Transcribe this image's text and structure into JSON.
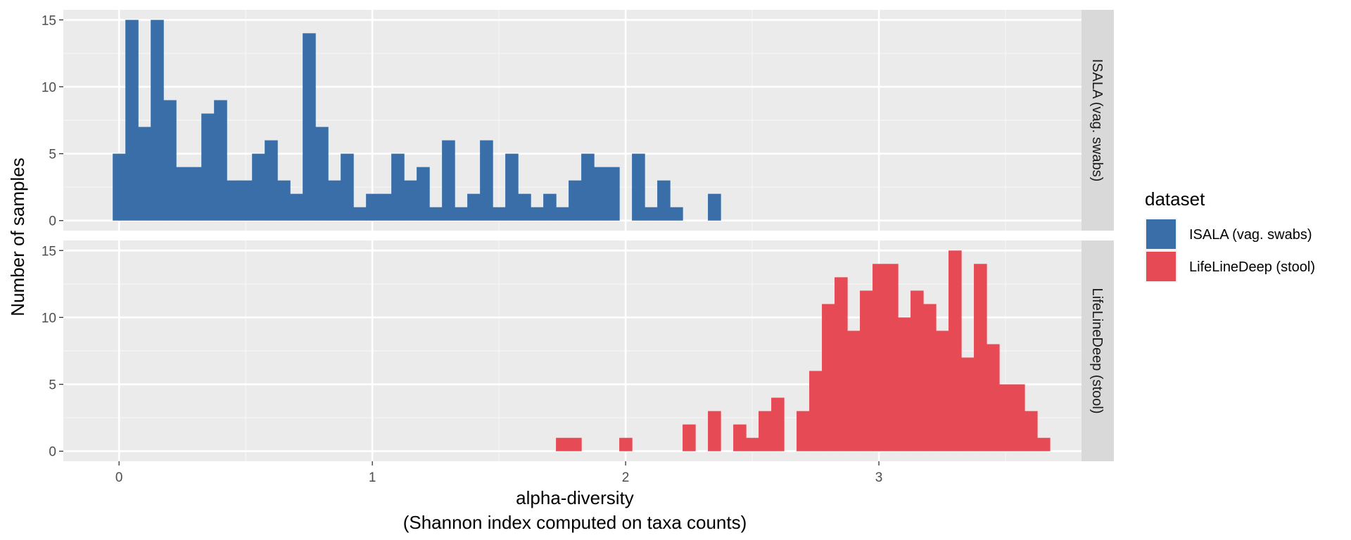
{
  "chart_data": {
    "type": "histogram",
    "xlabel_line1": "alpha-diversity",
    "xlabel_line2": "(Shannon index computed on taxa counts)",
    "ylabel": "Number of samples",
    "xlim": [
      -0.22,
      3.8
    ],
    "ylim": [
      -0.75,
      15.75
    ],
    "x_ticks": [
      0,
      1,
      2,
      3
    ],
    "y_ticks": [
      0,
      5,
      10,
      15
    ],
    "bin_start": -0.025,
    "bin_width": 0.05,
    "grid": true,
    "legend_position": "right",
    "legend": {
      "title": "dataset",
      "entries": [
        {
          "label": "ISALA (vag. swabs)",
          "color": "#3A6EA8"
        },
        {
          "label": "LifeLineDeep (stool)",
          "color": "#E64B55"
        }
      ]
    },
    "panels": [
      {
        "strip": "ISALA (vag. swabs)",
        "color": "#3A6EA8",
        "counts": [
          5,
          15,
          7,
          15,
          9,
          4,
          4,
          8,
          9,
          3,
          3,
          5,
          6,
          3,
          2,
          14,
          7,
          3,
          5,
          1,
          2,
          2,
          5,
          3,
          4,
          1,
          6,
          1,
          2,
          6,
          1,
          5,
          2,
          1,
          2,
          1,
          3,
          5,
          4,
          4,
          0,
          5,
          1,
          3,
          1,
          0,
          0,
          2
        ]
      },
      {
        "strip": "LifeLineDeep (stool)",
        "color": "#E64B55",
        "counts": [
          0,
          0,
          0,
          0,
          0,
          0,
          0,
          0,
          0,
          0,
          0,
          0,
          0,
          0,
          0,
          0,
          0,
          0,
          0,
          0,
          0,
          0,
          0,
          0,
          0,
          0,
          0,
          0,
          0,
          0,
          0,
          0,
          0,
          0,
          0,
          1,
          1,
          0,
          0,
          0,
          1,
          0,
          0,
          0,
          0,
          2,
          0,
          3,
          0,
          2,
          1,
          3,
          4,
          0,
          3,
          6,
          11,
          13,
          9,
          12,
          14,
          14,
          10,
          12,
          11,
          9,
          15,
          7,
          14,
          8,
          5,
          5,
          3,
          1
        ]
      }
    ]
  }
}
